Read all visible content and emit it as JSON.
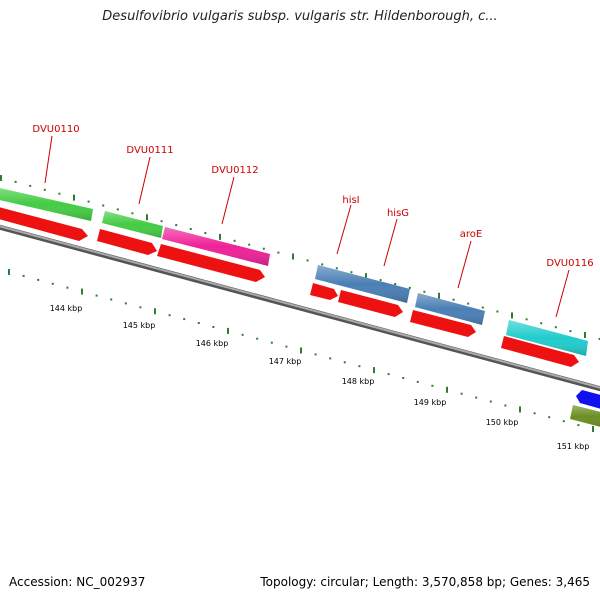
{
  "title": "Desulfovibrio vulgaris subsp. vulgaris str. Hildenborough, c...",
  "footer": {
    "accession": "Accession: NC_002937",
    "summary": "Topology: circular; Length: 3,570,858 bp; Genes: 3,465"
  },
  "colors": {
    "backbone": "#888888",
    "label": "#cc0000",
    "tick": "#2e7d32",
    "cds_reverse": "#ee1111"
  },
  "gene_labels": [
    "DVU0110",
    "DVU0111",
    "DVU0112",
    "hisI",
    "hisG",
    "aroE",
    "DVU0116"
  ],
  "kbp_labels": [
    "144 kbp",
    "145 kbp",
    "146 kbp",
    "147 kbp",
    "148 kbp",
    "149 kbp",
    "150 kbp",
    "151 kbp"
  ],
  "features": [
    {
      "color": "#44cc44",
      "kind": "bar"
    },
    {
      "color": "#44cc44",
      "kind": "bar"
    },
    {
      "color": "#ee2299",
      "kind": "bar"
    },
    {
      "color": "#4a7fb5",
      "kind": "bar"
    },
    {
      "color": "#4a7fb5",
      "kind": "bar"
    },
    {
      "color": "#22cccc",
      "kind": "bar"
    },
    {
      "color": "#1111ee",
      "kind": "arrow"
    },
    {
      "color": "#6b8e23",
      "kind": "bar"
    }
  ]
}
